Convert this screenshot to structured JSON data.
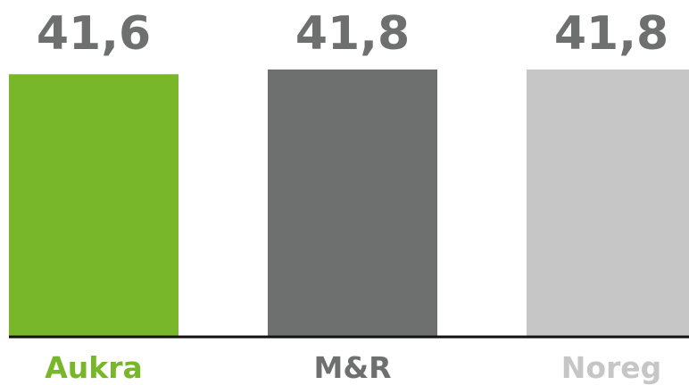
{
  "chart_data": {
    "type": "bar",
    "categories": [
      "Aukra",
      "M&R",
      "Noreg"
    ],
    "values": [
      41.6,
      41.8,
      41.8
    ],
    "value_labels": [
      "41,6",
      "41,8",
      "41,8"
    ],
    "colors": [
      "#78b62a",
      "#6e706f",
      "#c6c6c6"
    ],
    "label_colors": [
      "#78b62a",
      "#6e706f",
      "#c6c6c6"
    ],
    "value_label_color": "#6e706f",
    "axis_color": "#111111",
    "title": "",
    "xlabel": "",
    "ylabel": "",
    "ylim": [
      30.45,
      41.8
    ],
    "grid": false,
    "legend": "none"
  }
}
